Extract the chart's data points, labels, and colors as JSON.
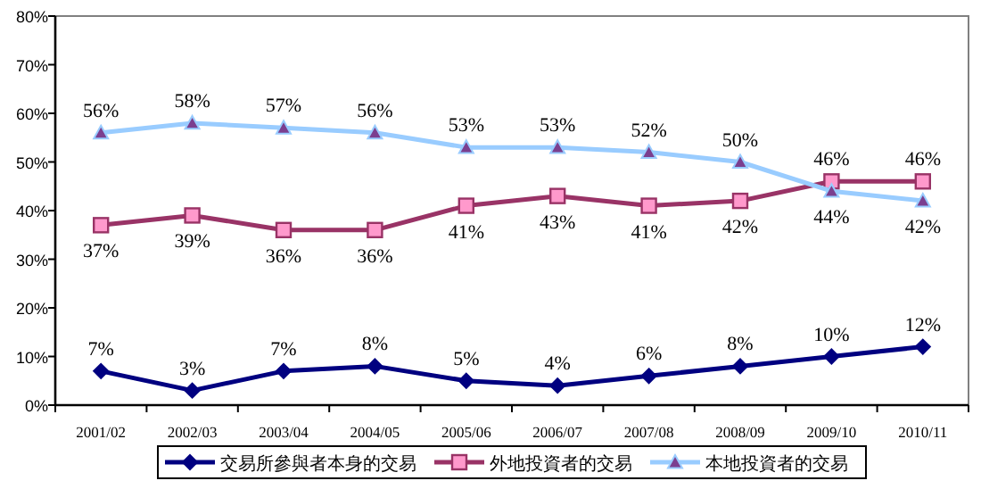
{
  "chart_data": {
    "type": "line",
    "categories": [
      "2001/02",
      "2002/03",
      "2003/04",
      "2004/05",
      "2005/06",
      "2006/07",
      "2007/08",
      "2008/09",
      "2009/10",
      "2010/11"
    ],
    "series": [
      {
        "name": "交易所參與者本身的交易",
        "color": "#000080",
        "marker": "diamond",
        "values": [
          7,
          3,
          7,
          8,
          5,
          4,
          6,
          8,
          10,
          12
        ],
        "value_labels": [
          "7%",
          "3%",
          "7%",
          "8%",
          "5%",
          "4%",
          "6%",
          "8%",
          "10%",
          "12%"
        ]
      },
      {
        "name": "外地投資者的交易",
        "color": "#993366",
        "marker": "square",
        "values": [
          37,
          39,
          36,
          36,
          41,
          43,
          41,
          42,
          46,
          46
        ],
        "value_labels": [
          "37%",
          "39%",
          "36%",
          "36%",
          "41%",
          "43%",
          "41%",
          "42%",
          "46%",
          "46%"
        ]
      },
      {
        "name": "本地投資者的交易",
        "color": "#99ccff",
        "marker": "triangle",
        "values": [
          56,
          58,
          57,
          56,
          53,
          53,
          52,
          50,
          44,
          42
        ],
        "value_labels": [
          "56%",
          "58%",
          "57%",
          "56%",
          "53%",
          "53%",
          "52%",
          "50%",
          "44%",
          "42%"
        ]
      }
    ],
    "ylim": [
      0,
      80
    ],
    "yticks": [
      {
        "value": 0,
        "label": "0%"
      },
      {
        "value": 10,
        "label": "10%"
      },
      {
        "value": 20,
        "label": "20%"
      },
      {
        "value": 30,
        "label": "30%"
      },
      {
        "value": 40,
        "label": "40%"
      },
      {
        "value": 50,
        "label": "50%"
      },
      {
        "value": 60,
        "label": "60%"
      },
      {
        "value": 70,
        "label": "70%"
      },
      {
        "value": 80,
        "label": "80%"
      }
    ],
    "grid": false,
    "legend": "bottom",
    "line_style": "solid"
  }
}
